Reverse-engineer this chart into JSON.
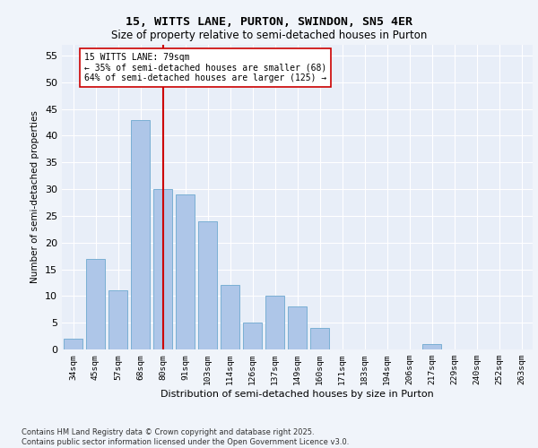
{
  "title1": "15, WITTS LANE, PURTON, SWINDON, SN5 4ER",
  "title2": "Size of property relative to semi-detached houses in Purton",
  "xlabel": "Distribution of semi-detached houses by size in Purton",
  "ylabel": "Number of semi-detached properties",
  "categories": [
    "34sqm",
    "45sqm",
    "57sqm",
    "68sqm",
    "80sqm",
    "91sqm",
    "103sqm",
    "114sqm",
    "126sqm",
    "137sqm",
    "149sqm",
    "160sqm",
    "171sqm",
    "183sqm",
    "194sqm",
    "206sqm",
    "217sqm",
    "229sqm",
    "240sqm",
    "252sqm",
    "263sqm"
  ],
  "values": [
    2,
    17,
    11,
    43,
    30,
    29,
    24,
    12,
    5,
    10,
    8,
    4,
    0,
    0,
    0,
    0,
    1,
    0,
    0,
    0,
    0
  ],
  "bar_color": "#aec6e8",
  "bar_edge_color": "#7aafd4",
  "vline_color": "#cc0000",
  "annotation_title": "15 WITTS LANE: 79sqm",
  "annotation_line1": "← 35% of semi-detached houses are smaller (68)",
  "annotation_line2": "64% of semi-detached houses are larger (125) →",
  "ylim": [
    0,
    57
  ],
  "yticks": [
    0,
    5,
    10,
    15,
    20,
    25,
    30,
    35,
    40,
    45,
    50,
    55
  ],
  "footer1": "Contains HM Land Registry data © Crown copyright and database right 2025.",
  "footer2": "Contains public sector information licensed under the Open Government Licence v3.0.",
  "background_color": "#f0f4fa",
  "plot_bg_color": "#e8eef8"
}
